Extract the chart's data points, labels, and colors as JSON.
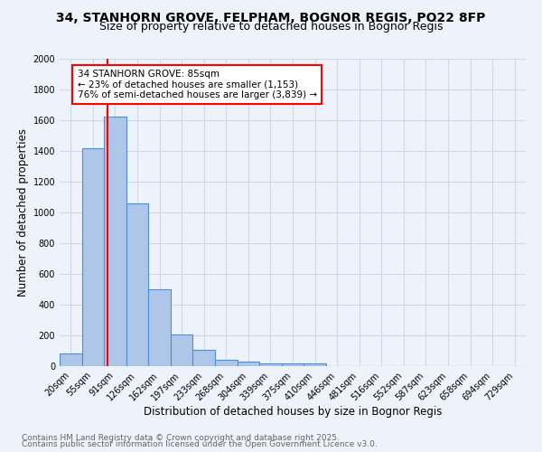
{
  "title_line1": "34, STANHORN GROVE, FELPHAM, BOGNOR REGIS, PO22 8FP",
  "title_line2": "Size of property relative to detached houses in Bognor Regis",
  "xlabel": "Distribution of detached houses by size in Bognor Regis",
  "ylabel": "Number of detached properties",
  "categories": [
    "20sqm",
    "55sqm",
    "91sqm",
    "126sqm",
    "162sqm",
    "197sqm",
    "233sqm",
    "268sqm",
    "304sqm",
    "339sqm",
    "375sqm",
    "410sqm",
    "446sqm",
    "481sqm",
    "516sqm",
    "552sqm",
    "587sqm",
    "623sqm",
    "658sqm",
    "694sqm",
    "729sqm"
  ],
  "values": [
    80,
    1420,
    1625,
    1060,
    500,
    205,
    105,
    40,
    30,
    20,
    15,
    15,
    0,
    0,
    0,
    0,
    0,
    0,
    0,
    0,
    0
  ],
  "bar_color": "#aec6e8",
  "bar_edge_color": "#4a90d9",
  "bar_edge_width": 0.8,
  "annotation_text": "34 STANHORN GROVE: 85sqm\n← 23% of detached houses are smaller (1,153)\n76% of semi-detached houses are larger (3,839) →",
  "annotation_box_color": "white",
  "annotation_box_edge_color": "red",
  "ylim": [
    0,
    2000
  ],
  "yticks": [
    0,
    200,
    400,
    600,
    800,
    1000,
    1200,
    1400,
    1600,
    1800,
    2000
  ],
  "grid_color": "#d0d8e8",
  "background_color": "#eef2fa",
  "footer_line1": "Contains HM Land Registry data © Crown copyright and database right 2025.",
  "footer_line2": "Contains public sector information licensed under the Open Government Licence v3.0.",
  "title_fontsize": 10,
  "subtitle_fontsize": 9,
  "axis_label_fontsize": 8.5,
  "tick_fontsize": 7,
  "footer_fontsize": 6.5,
  "annot_fontsize": 7.5
}
